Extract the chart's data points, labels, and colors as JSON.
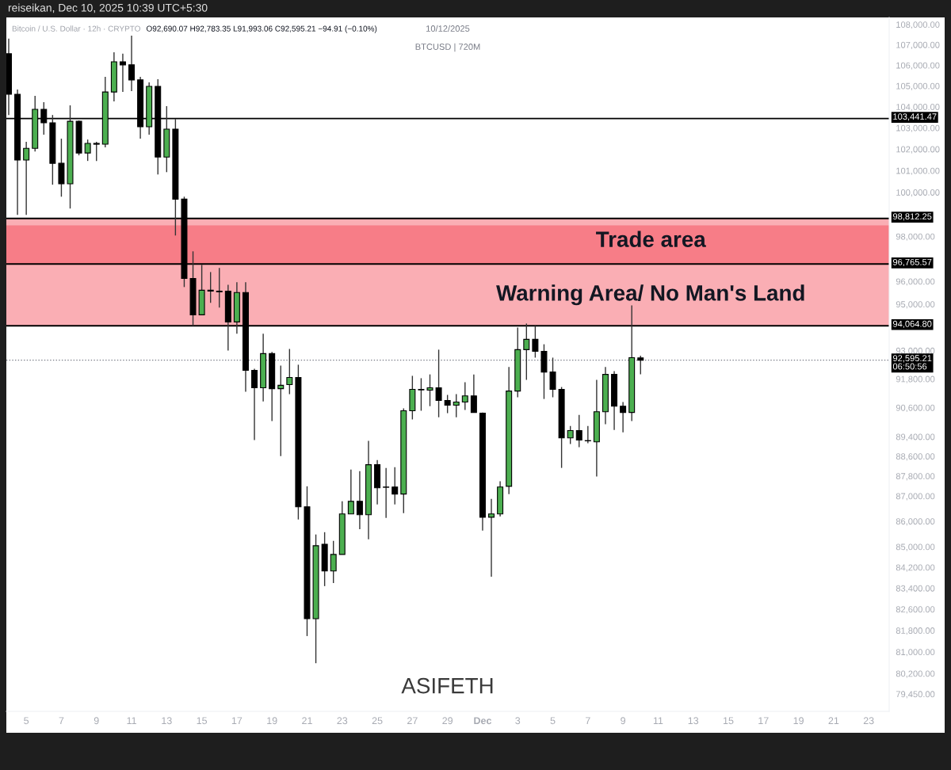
{
  "chart_data": {
    "type": "candlestick",
    "title": "Bitcoin / U.S. Dollar · 12h · CRYPTO",
    "annotations": [
      "O92,690.07 H92,783.35 L91,993.06 C92,595.21 −94.91 (−0.10%)",
      "10/12/2025",
      "BTCUSD | 720M",
      "ASIFETH",
      "reiseikan, Dec 10, 2025 10:39 UTC+5:30"
    ],
    "x": [
      "2025-11-04T00:00",
      "2025-11-04T12:00",
      "2025-11-05T00:00",
      "2025-11-05T12:00",
      "2025-11-06T00:00",
      "2025-11-06T12:00",
      "2025-11-07T00:00",
      "2025-11-07T12:00",
      "2025-11-08T00:00",
      "2025-11-08T12:00",
      "2025-11-09T00:00",
      "2025-11-09T12:00",
      "2025-11-10T00:00",
      "2025-11-10T12:00",
      "2025-11-11T00:00",
      "2025-11-11T12:00",
      "2025-11-12T00:00",
      "2025-11-12T12:00",
      "2025-11-13T00:00",
      "2025-11-13T12:00",
      "2025-11-14T00:00",
      "2025-11-14T12:00",
      "2025-11-15T00:00",
      "2025-11-15T12:00",
      "2025-11-16T00:00",
      "2025-11-16T12:00",
      "2025-11-17T00:00",
      "2025-11-17T12:00",
      "2025-11-18T00:00",
      "2025-11-18T12:00",
      "2025-11-19T00:00",
      "2025-11-19T12:00",
      "2025-11-20T00:00",
      "2025-11-20T12:00",
      "2025-11-21T00:00",
      "2025-11-21T12:00",
      "2025-11-22T00:00",
      "2025-11-22T12:00",
      "2025-11-23T00:00",
      "2025-11-23T12:00",
      "2025-11-24T00:00",
      "2025-11-24T12:00",
      "2025-11-25T00:00",
      "2025-11-25T12:00",
      "2025-11-26T00:00",
      "2025-11-26T12:00",
      "2025-11-27T00:00",
      "2025-11-27T12:00",
      "2025-11-28T00:00",
      "2025-11-28T12:00",
      "2025-11-29T00:00",
      "2025-11-29T12:00",
      "2025-11-30T00:00",
      "2025-11-30T12:00",
      "2025-12-01T00:00",
      "2025-12-01T12:00",
      "2025-12-02T00:00",
      "2025-12-02T12:00",
      "2025-12-03T00:00",
      "2025-12-03T12:00",
      "2025-12-04T00:00",
      "2025-12-04T12:00",
      "2025-12-05T00:00",
      "2025-12-05T12:00",
      "2025-12-06T00:00",
      "2025-12-06T12:00",
      "2025-12-07T00:00",
      "2025-12-07T12:00",
      "2025-12-08T00:00",
      "2025-12-08T12:00",
      "2025-12-09T00:00",
      "2025-12-09T12:00",
      "2025-12-10T00:00"
    ],
    "ohlc": [
      [
        106560,
        107300,
        103610,
        104600
      ],
      [
        104600,
        104830,
        98970,
        101490
      ],
      [
        101490,
        102340,
        98970,
        102040
      ],
      [
        102040,
        104520,
        101890,
        103880
      ],
      [
        103880,
        104220,
        102680,
        103240
      ],
      [
        103240,
        103610,
        100350,
        101340
      ],
      [
        101340,
        102490,
        99800,
        100390
      ],
      [
        100390,
        104070,
        99260,
        103310
      ],
      [
        103310,
        103350,
        101710,
        101820
      ],
      [
        101820,
        102450,
        101450,
        102270
      ],
      [
        102270,
        102340,
        101450,
        102230
      ],
      [
        102230,
        105440,
        102080,
        104710
      ],
      [
        104710,
        106630,
        104260,
        106170
      ],
      [
        106170,
        106560,
        104710,
        106020
      ],
      [
        106020,
        107450,
        104750,
        105290
      ],
      [
        105290,
        105440,
        102490,
        103050
      ],
      [
        103050,
        105170,
        102680,
        104980
      ],
      [
        104980,
        105320,
        100820,
        101630
      ],
      [
        101630,
        104030,
        100930,
        102940
      ],
      [
        102940,
        103420,
        98040,
        99690
      ],
      [
        99690,
        99800,
        95750,
        96130
      ],
      [
        96130,
        97330,
        94060,
        94540
      ],
      [
        94540,
        96730,
        94540,
        95610
      ],
      [
        95610,
        96410,
        95060,
        95570
      ],
      [
        95540,
        96590,
        94850,
        95570
      ],
      [
        95570,
        95850,
        93000,
        94230
      ],
      [
        94230,
        95960,
        93720,
        95510
      ],
      [
        95510,
        95960,
        91260,
        92160
      ],
      [
        92160,
        92230,
        89260,
        91430
      ],
      [
        91430,
        93720,
        90860,
        92870
      ],
      [
        92870,
        92940,
        90040,
        91390
      ],
      [
        91390,
        92360,
        88610,
        91530
      ],
      [
        91560,
        93070,
        91160,
        91860
      ],
      [
        91860,
        92400,
        86070,
        86570
      ],
      [
        86570,
        87390,
        81590,
        82240
      ],
      [
        82240,
        85480,
        80580,
        85040
      ],
      [
        85100,
        85570,
        83480,
        84060
      ],
      [
        84060,
        85230,
        83600,
        84700
      ],
      [
        84700,
        86790,
        84700,
        86290
      ],
      [
        86290,
        88060,
        86290,
        86790
      ],
      [
        86790,
        88000,
        85690,
        86260
      ],
      [
        86260,
        89230,
        85290,
        88260
      ],
      [
        88260,
        88450,
        86670,
        87330
      ],
      [
        87360,
        88130,
        86130,
        87350
      ],
      [
        87360,
        88160,
        86670,
        87080
      ],
      [
        87080,
        90570,
        86320,
        90470
      ],
      [
        90470,
        91930,
        90110,
        91360
      ],
      [
        91360,
        91830,
        90470,
        91340
      ],
      [
        91330,
        91990,
        90660,
        91430
      ],
      [
        91430,
        93040,
        90200,
        90900
      ],
      [
        90900,
        91130,
        90370,
        90700
      ],
      [
        90700,
        91160,
        90200,
        90830
      ],
      [
        90830,
        91660,
        90500,
        91090
      ],
      [
        91090,
        91990,
        90400,
        90400
      ],
      [
        90370,
        90400,
        85630,
        86160
      ],
      [
        86160,
        86890,
        83840,
        86290
      ],
      [
        86290,
        87590,
        86190,
        87360
      ],
      [
        87390,
        92300,
        87080,
        91290
      ],
      [
        91290,
        93990,
        91030,
        93040
      ],
      [
        93040,
        94160,
        91760,
        93480
      ],
      [
        93480,
        94060,
        92700,
        92970
      ],
      [
        92970,
        93270,
        90960,
        92090
      ],
      [
        92090,
        92700,
        91030,
        91360
      ],
      [
        91360,
        91460,
        88130,
        89350
      ],
      [
        89350,
        89840,
        89100,
        89650
      ],
      [
        89650,
        90300,
        88970,
        89260
      ],
      [
        89240,
        89840,
        89130,
        89230
      ],
      [
        89190,
        91760,
        87780,
        90430
      ],
      [
        90430,
        92300,
        89910,
        91990
      ],
      [
        91990,
        92130,
        89680,
        90660
      ],
      [
        90660,
        90830,
        89580,
        90400
      ],
      [
        90400,
        94950,
        90040,
        92700
      ],
      [
        92690.07,
        92783.35,
        91993.06,
        92595.21
      ]
    ],
    "colors": [
      "#000000",
      "#000000",
      "#4caf50",
      "#4caf50",
      "#000000",
      "#000000",
      "#000000",
      "#4caf50",
      "#000000",
      "#4caf50",
      "#000000",
      "#4caf50",
      "#4caf50",
      "#000000",
      "#000000",
      "#000000",
      "#4caf50",
      "#000000",
      "#4caf50",
      "#000000",
      "#000000",
      "#000000",
      "#4caf50",
      "#000000",
      "#4caf50",
      "#000000",
      "#4caf50",
      "#000000",
      "#000000",
      "#4caf50",
      "#000000",
      "#4caf50",
      "#4caf50",
      "#000000",
      "#000000",
      "#4caf50",
      "#000000",
      "#4caf50",
      "#4caf50",
      "#4caf50",
      "#000000",
      "#4caf50",
      "#000000",
      "#000000",
      "#000000",
      "#4caf50",
      "#4caf50",
      "#000000",
      "#4caf50",
      "#000000",
      "#000000",
      "#4caf50",
      "#4caf50",
      "#000000",
      "#000000",
      "#4caf50",
      "#4caf50",
      "#4caf50",
      "#4caf50",
      "#4caf50",
      "#000000",
      "#000000",
      "#000000",
      "#000000",
      "#4caf50",
      "#000000",
      "#000000",
      "#4caf50",
      "#4caf50",
      "#000000",
      "#000000",
      "#4caf50",
      "#000000"
    ],
    "xlim": [
      "2025-11-03T20:45",
      "2025-12-24T04:00"
    ],
    "xticks": [
      {
        "value": "2025-11-05",
        "label": "5"
      },
      {
        "value": "2025-11-07",
        "label": "7"
      },
      {
        "value": "2025-11-09",
        "label": "9"
      },
      {
        "value": "2025-11-11",
        "label": "11"
      },
      {
        "value": "2025-11-13",
        "label": "13"
      },
      {
        "value": "2025-11-15",
        "label": "15"
      },
      {
        "value": "2025-11-17",
        "label": "17"
      },
      {
        "value": "2025-11-19",
        "label": "19"
      },
      {
        "value": "2025-11-21",
        "label": "21"
      },
      {
        "value": "2025-11-23",
        "label": "23"
      },
      {
        "value": "2025-11-25",
        "label": "25"
      },
      {
        "value": "2025-11-27",
        "label": "27"
      },
      {
        "value": "2025-11-29",
        "label": "29"
      },
      {
        "value": "2025-12-01",
        "label": "Dec"
      },
      {
        "value": "2025-12-03",
        "label": "3"
      },
      {
        "value": "2025-12-05",
        "label": "5"
      },
      {
        "value": "2025-12-07",
        "label": "7"
      },
      {
        "value": "2025-12-09",
        "label": "9"
      },
      {
        "value": "2025-12-11",
        "label": "11"
      },
      {
        "value": "2025-12-13",
        "label": "13"
      },
      {
        "value": "2025-12-15",
        "label": "15"
      },
      {
        "value": "2025-12-17",
        "label": "17"
      },
      {
        "value": "2025-12-19",
        "label": "19"
      },
      {
        "value": "2025-12-21",
        "label": "21"
      },
      {
        "value": "2025-12-23",
        "label": "23"
      }
    ],
    "ylim": [
      78820,
      108350
    ],
    "log": true,
    "yticks": [
      {
        "value": 108000,
        "label": "108,000.00"
      },
      {
        "value": 107000,
        "label": "107,000.00"
      },
      {
        "value": 106000,
        "label": "106,000.00"
      },
      {
        "value": 105000,
        "label": "105,000.00"
      },
      {
        "value": 104000,
        "label": "104,000.00"
      },
      {
        "value": 103000,
        "label": "103,000.00"
      },
      {
        "value": 102000,
        "label": "102,000.00"
      },
      {
        "value": 101000,
        "label": "101,000.00"
      },
      {
        "value": 100000,
        "label": "100,000.00"
      },
      {
        "value": 98000,
        "label": "98,000.00"
      },
      {
        "value": 96000,
        "label": "96,000.00"
      },
      {
        "value": 95000,
        "label": "95,000.00"
      },
      {
        "value": 93000,
        "label": "93,000.00"
      },
      {
        "value": 91800,
        "label": "91,800.00"
      },
      {
        "value": 90600,
        "label": "90,600.00"
      },
      {
        "value": 89400,
        "label": "89,400.00"
      },
      {
        "value": 88600,
        "label": "88,600.00"
      },
      {
        "value": 87800,
        "label": "87,800.00"
      },
      {
        "value": 87000,
        "label": "87,000.00"
      },
      {
        "value": 86000,
        "label": "86,000.00"
      },
      {
        "value": 85000,
        "label": "85,000.00"
      },
      {
        "value": 84200,
        "label": "84,200.00"
      },
      {
        "value": 83400,
        "label": "83,400.00"
      },
      {
        "value": 82600,
        "label": "82,600.00"
      },
      {
        "value": 81800,
        "label": "81,800.00"
      },
      {
        "value": 81000,
        "label": "81,000.00"
      },
      {
        "value": 80200,
        "label": "80,200.00"
      },
      {
        "value": 79450,
        "label": "79,450.00"
      }
    ],
    "ref_lines": [
      {
        "axis": "y",
        "value": 103441.47,
        "label": "103,441.47",
        "color": "#000000"
      },
      {
        "axis": "y",
        "value": 98812.25,
        "label": "98,812.25",
        "color": "#000000"
      },
      {
        "axis": "y",
        "value": 96765.57,
        "label": "96,765.57",
        "color": "#000000"
      },
      {
        "axis": "y",
        "value": 94064.8,
        "label": "94,064.80",
        "color": "#000000"
      },
      {
        "axis": "y",
        "value": 92595.21,
        "label": "92,595.21\n06:50:56",
        "color": "#787b86",
        "line_style": "dotted"
      }
    ],
    "bands": [
      {
        "axis": "y",
        "from": 96765.57,
        "to": 98812.25,
        "label": "Trade area",
        "color": "#faaeb4"
      },
      {
        "axis": "y",
        "from": 94064.8,
        "to": 98500,
        "label": "Warning Area/ No Man's Land",
        "color": "#faaeb4"
      }
    ]
  }
}
